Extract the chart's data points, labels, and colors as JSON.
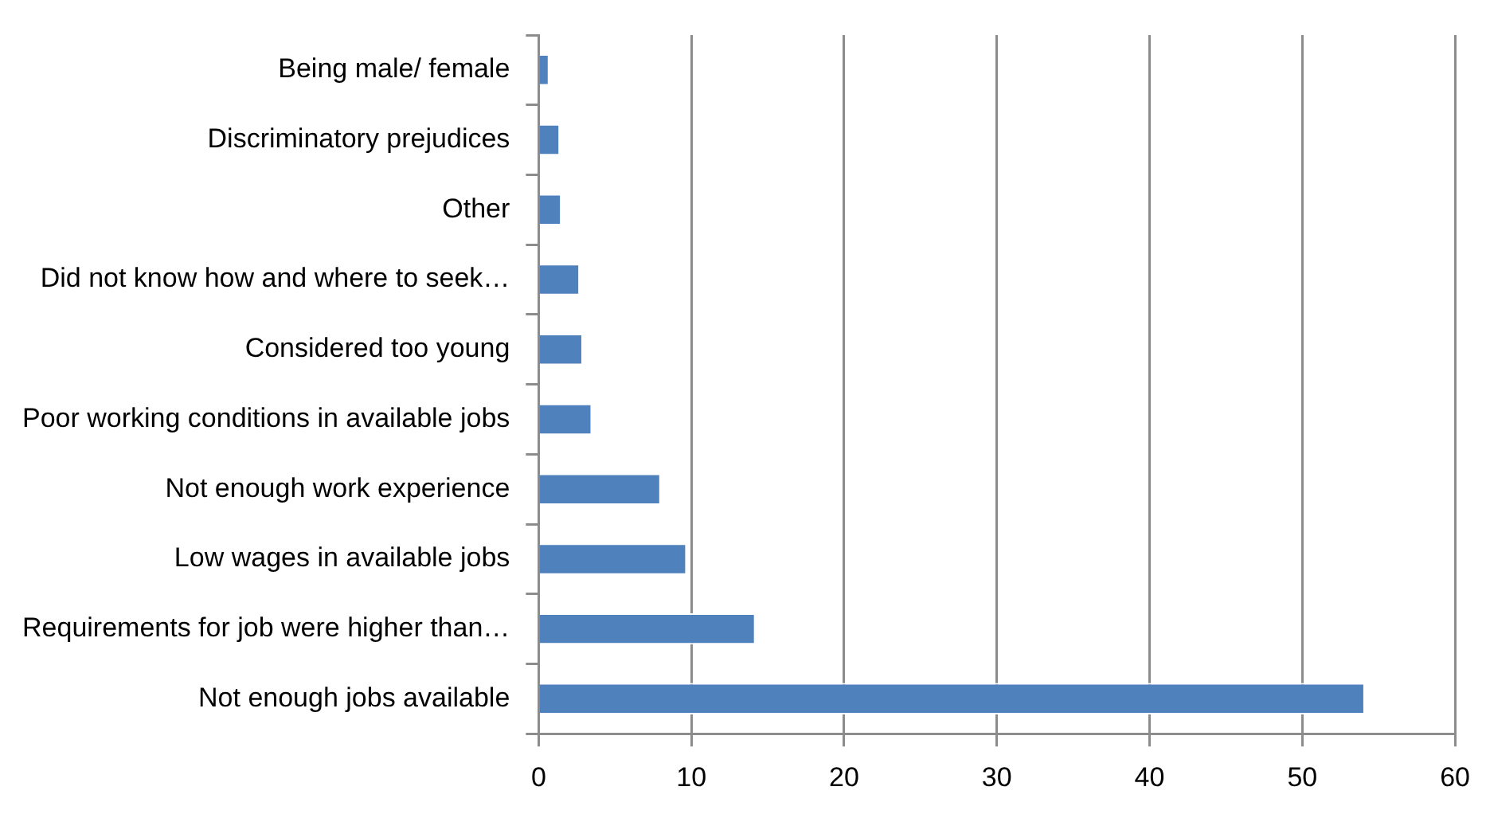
{
  "chart_data": {
    "type": "bar",
    "orientation": "horizontal",
    "categories": [
      "Being male/ female",
      "Discriminatory prejudices",
      "Other",
      "Did not know how and where to seek…",
      "Considered too young",
      "Poor working conditions in available jobs",
      "Not enough work experience",
      "Low wages in available jobs",
      "Requirements for job were higher than…",
      "Not enough jobs available"
    ],
    "values": [
      0.7,
      1.4,
      1.5,
      2.7,
      2.9,
      3.5,
      8.0,
      9.7,
      14.2,
      54.1
    ],
    "color": "#4f81bd",
    "xlim": [
      0,
      60
    ],
    "xticks": [
      0,
      10,
      20,
      30,
      40,
      50,
      60
    ],
    "grid": "x",
    "legend": false
  }
}
